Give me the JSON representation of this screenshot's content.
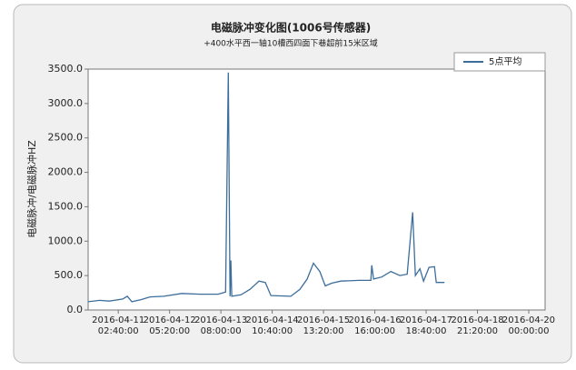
{
  "chart_data": {
    "type": "line",
    "title": "电磁脉冲变化图(1006号传感器)",
    "subtitle": "+400水平西一轴10槽西四面下巷超前15米区域",
    "y_label": "电磁脉冲/电磁脉冲HZ",
    "legend_position": "upper right",
    "grid": false,
    "x": [
      "2016-04-10 11:00",
      "2016-04-10 17:00",
      "2016-04-10 22:00",
      "2016-04-11 05:00",
      "2016-04-11 07:20",
      "2016-04-11 09:45",
      "2016-04-11 14:30",
      "2016-04-11 19:10",
      "2016-04-12 02:20",
      "2016-04-12 11:40",
      "2016-04-12 21:10",
      "2016-04-13 06:35",
      "2016-04-13 10:25",
      "2016-04-13 11:50",
      "2016-04-13 12:45",
      "2016-04-13 13:10",
      "2016-04-13 13:40",
      "2016-04-13 18:25",
      "2016-04-13 23:05",
      "2016-04-14 03:50",
      "2016-04-14 07:05",
      "2016-04-14 10:00",
      "2016-04-14 20:20",
      "2016-04-15 01:05",
      "2016-04-15 04:50",
      "2016-04-15 08:05",
      "2016-04-15 11:25",
      "2016-04-15 14:15",
      "2016-04-15 17:35",
      "2016-04-15 22:20",
      "2016-04-16 07:45",
      "2016-04-16 13:55",
      "2016-04-16 14:25",
      "2016-04-16 15:20",
      "2016-04-16 19:35",
      "2016-04-17 00:20",
      "2016-04-17 05:00",
      "2016-04-17 08:50",
      "2016-04-17 11:40",
      "2016-04-17 13:05",
      "2016-04-17 15:25",
      "2016-04-17 17:20",
      "2016-04-17 20:10",
      "2016-04-17 23:00",
      "2016-04-17 23:55",
      "2016-04-18 04:10"
    ],
    "series": [
      {
        "name": "5点平均",
        "color": "#3c6e9c",
        "values": [
          120,
          140,
          130,
          160,
          200,
          120,
          150,
          190,
          200,
          240,
          230,
          230,
          260,
          3450,
          200,
          720,
          200,
          220,
          300,
          420,
          400,
          210,
          200,
          300,
          450,
          680,
          560,
          350,
          390,
          420,
          430,
          430,
          650,
          450,
          480,
          560,
          500,
          520,
          1420,
          500,
          600,
          420,
          620,
          630,
          400,
          400
        ]
      }
    ],
    "xlim": [
      "2016-04-10 11:00:00",
      "2016-04-20 08:30:00"
    ],
    "xticks": [
      "2016-04-11 02:40:00",
      "2016-04-12 05:20:00",
      "2016-04-13 08:00:00",
      "2016-04-14 10:40:00",
      "2016-04-15 13:20:00",
      "2016-04-16 16:00:00",
      "2016-04-17 18:40:00",
      "2016-04-18 21:20:00",
      "2016-04-20 00:00:00"
    ],
    "ylim": [
      0,
      3500
    ],
    "yticks": [
      {
        "value": 0,
        "label": "0.0"
      },
      {
        "value": 500,
        "label": "500.0"
      },
      {
        "value": 1000,
        "label": "1000.0"
      },
      {
        "value": 1500,
        "label": "1500.0"
      },
      {
        "value": 2000,
        "label": "2000.0"
      },
      {
        "value": 2500,
        "label": "2500.0"
      },
      {
        "value": 3000,
        "label": "3000.0"
      },
      {
        "value": 3500,
        "label": "3500.0"
      }
    ]
  }
}
